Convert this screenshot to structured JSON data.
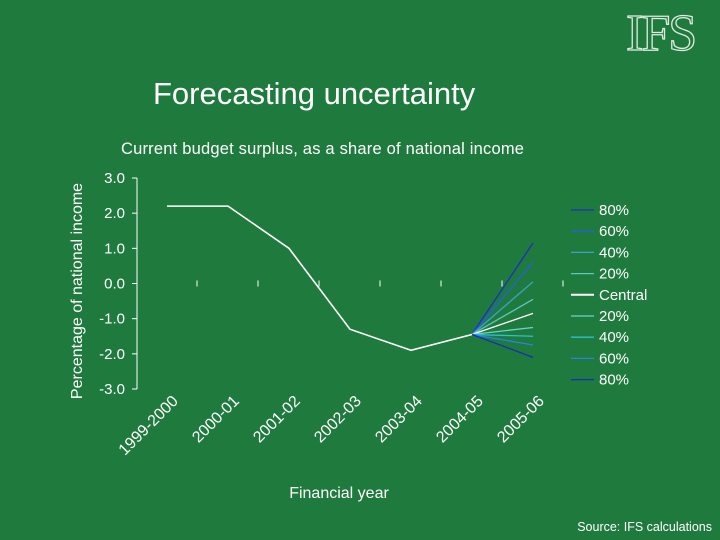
{
  "logo": "IFS",
  "title": "Forecasting uncertainty",
  "subtitle": "Current budget surplus, as a share of national income",
  "source": "Source: IFS calculations",
  "colors": {
    "background": "#1f7a3e",
    "central": "#ffffff",
    "fan": [
      "#1f2fbf",
      "#2a5ee0",
      "#3fa1c8",
      "#5fc6c2",
      "#ffffff",
      "#6fd2c6",
      "#2cc0d0",
      "#2a82e8",
      "#1a2db8"
    ]
  },
  "chart_data": {
    "type": "line",
    "title": "Current budget surplus, as a share of national income",
    "xlabel": "Financial year",
    "ylabel": "Percentage of national income",
    "categories": [
      "1999-2000",
      "2000-01",
      "2001-02",
      "2002-03",
      "2003-04",
      "2004-05",
      "2005-06"
    ],
    "ylim": [
      -3.0,
      3.0
    ],
    "yticks": [
      "3.0",
      "2.0",
      "1.0",
      "0.0",
      "-1.0",
      "-2.0",
      "-3.0"
    ],
    "central": {
      "name": "Central",
      "x": [
        0,
        1,
        2,
        3,
        4,
        5
      ],
      "values": [
        2.2,
        2.2,
        1.0,
        -1.3,
        -1.9,
        -1.45
      ]
    },
    "fan": {
      "start_x": 5,
      "end_x": 6,
      "start_value": -1.45,
      "series": [
        {
          "name": "80%",
          "value": 1.15
        },
        {
          "name": "60%",
          "value": 0.6
        },
        {
          "name": "40%",
          "value": 0.05
        },
        {
          "name": "20%",
          "value": -0.45
        },
        {
          "name": "Central",
          "value": -0.85
        },
        {
          "name": "20%",
          "value": -1.25
        },
        {
          "name": "40%",
          "value": -1.5
        },
        {
          "name": "60%",
          "value": -1.75
        },
        {
          "name": "80%",
          "value": -2.1
        }
      ]
    },
    "legend": [
      "80%",
      "60%",
      "40%",
      "20%",
      "Central",
      "20%",
      "40%",
      "60%",
      "80%"
    ],
    "legend_position": "right",
    "grid": false
  }
}
